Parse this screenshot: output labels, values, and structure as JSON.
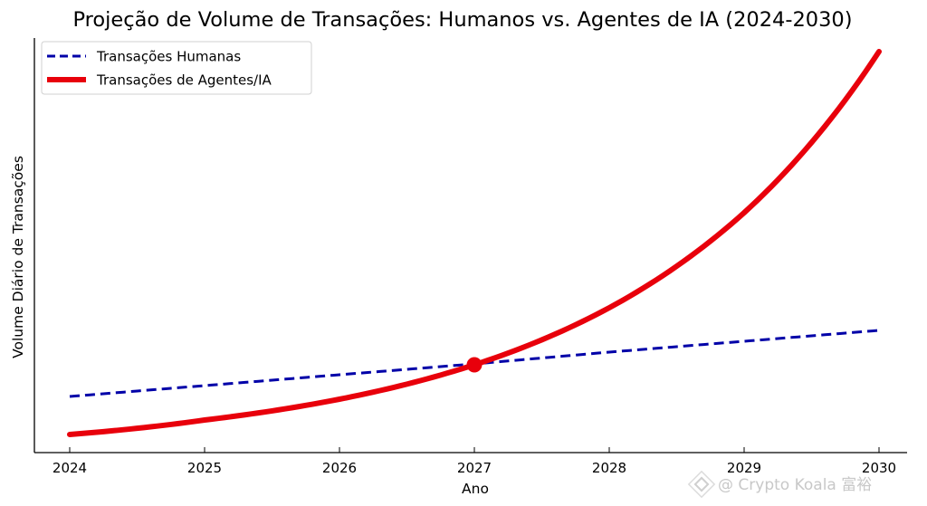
{
  "chart_data": {
    "type": "line",
    "title": "Projeção de Volume de Transações: Humanos vs. Agentes de IA (2024-2030)",
    "xlabel": "Ano",
    "ylabel": "Volume Diário de Transações",
    "x_ticks": [
      "2024",
      "2025",
      "2026",
      "2027",
      "2028",
      "2029",
      "2030"
    ],
    "xlim": [
      2023.74,
      2030.3
    ],
    "ylim": [
      0,
      460
    ],
    "y_ticks_shown": false,
    "grid": false,
    "legend_position": "top-left",
    "x": [
      2024,
      2025,
      2026,
      2027,
      2028,
      2029,
      2030
    ],
    "series": [
      {
        "name": "Transações Humanas",
        "style": "dashed",
        "color": "#0000a8",
        "model": "linear",
        "values": [
          62,
          74,
          86,
          98,
          111,
          123,
          135
        ]
      },
      {
        "name": "Transações de Agentes/IA",
        "style": "solid-thick",
        "color": "#e8000b",
        "model": "exponential",
        "values": [
          20,
          36,
          59,
          97,
          160,
          265,
          443
        ]
      }
    ],
    "annotations": [
      {
        "type": "marker",
        "label": "crossover",
        "x": 2027,
        "y": 97,
        "color": "#e8000b"
      }
    ]
  },
  "watermark": {
    "text": "@ Crypto Koala 富裕"
  }
}
